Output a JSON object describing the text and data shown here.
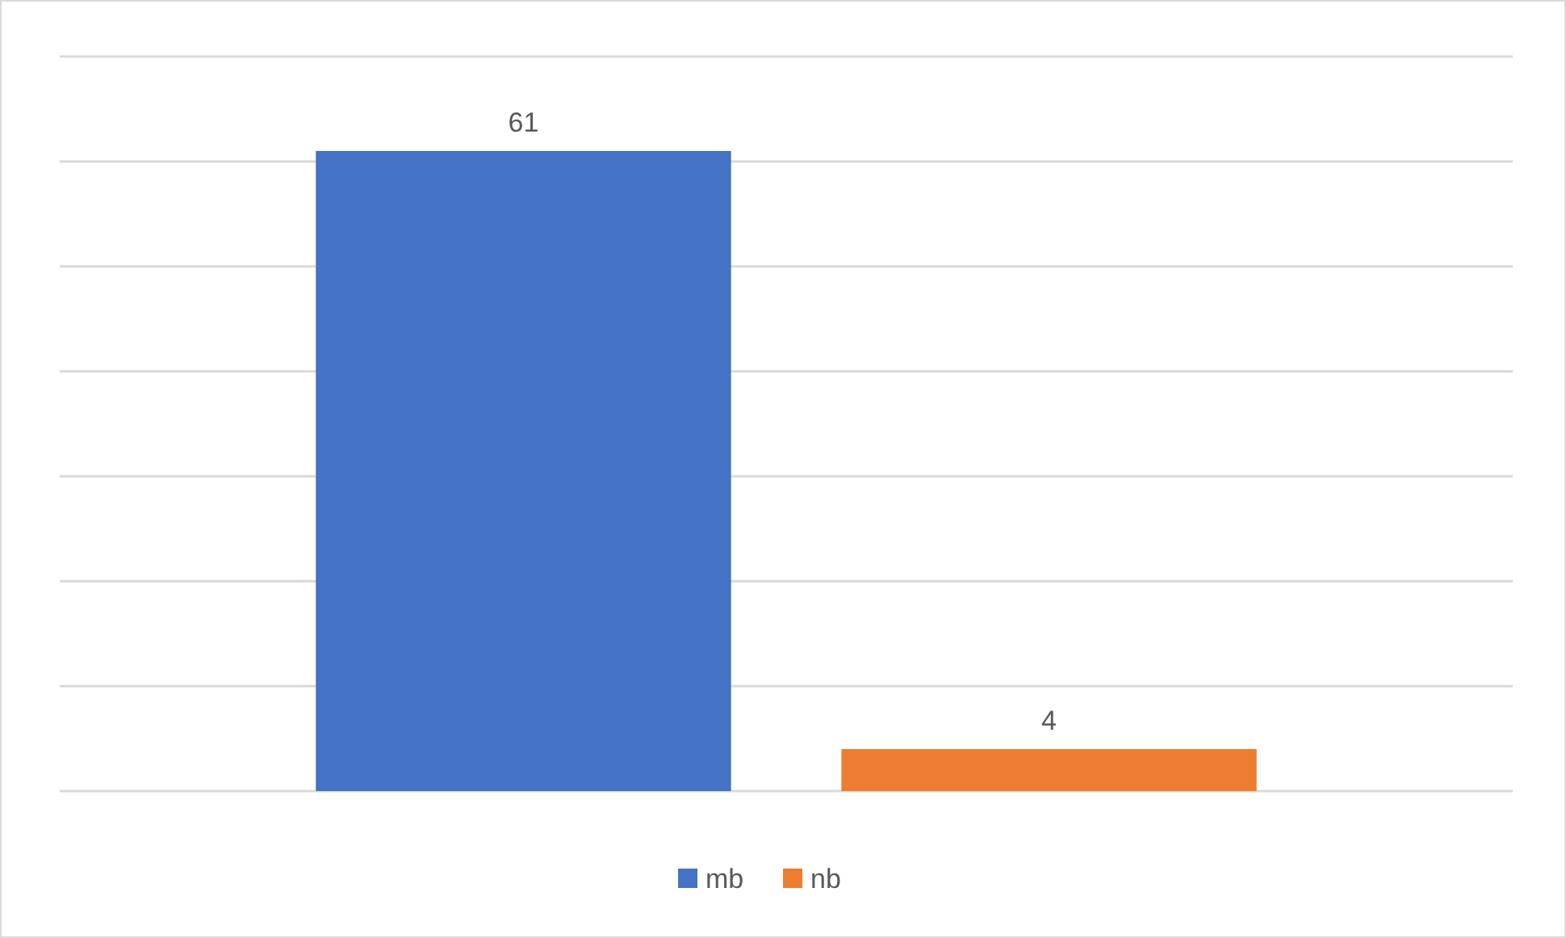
{
  "chart_data": {
    "type": "bar",
    "categories": [
      null
    ],
    "series": [
      {
        "name": "mb",
        "color": "#4472c4",
        "values": [
          61
        ]
      },
      {
        "name": "nb",
        "color": "#ed7d31",
        "values": [
          4
        ]
      }
    ],
    "ylim": [
      0,
      70
    ],
    "yticks": [
      {
        "value": 0,
        "label": null
      },
      {
        "value": 10,
        "label": null
      },
      {
        "value": 20,
        "label": null
      },
      {
        "value": 30,
        "label": null
      },
      {
        "value": 40,
        "label": null
      },
      {
        "value": 50,
        "label": null
      },
      {
        "value": 60,
        "label": null
      },
      {
        "value": 70,
        "label": null
      }
    ],
    "grid": "y",
    "legend": "bottom",
    "data_labels": true
  }
}
